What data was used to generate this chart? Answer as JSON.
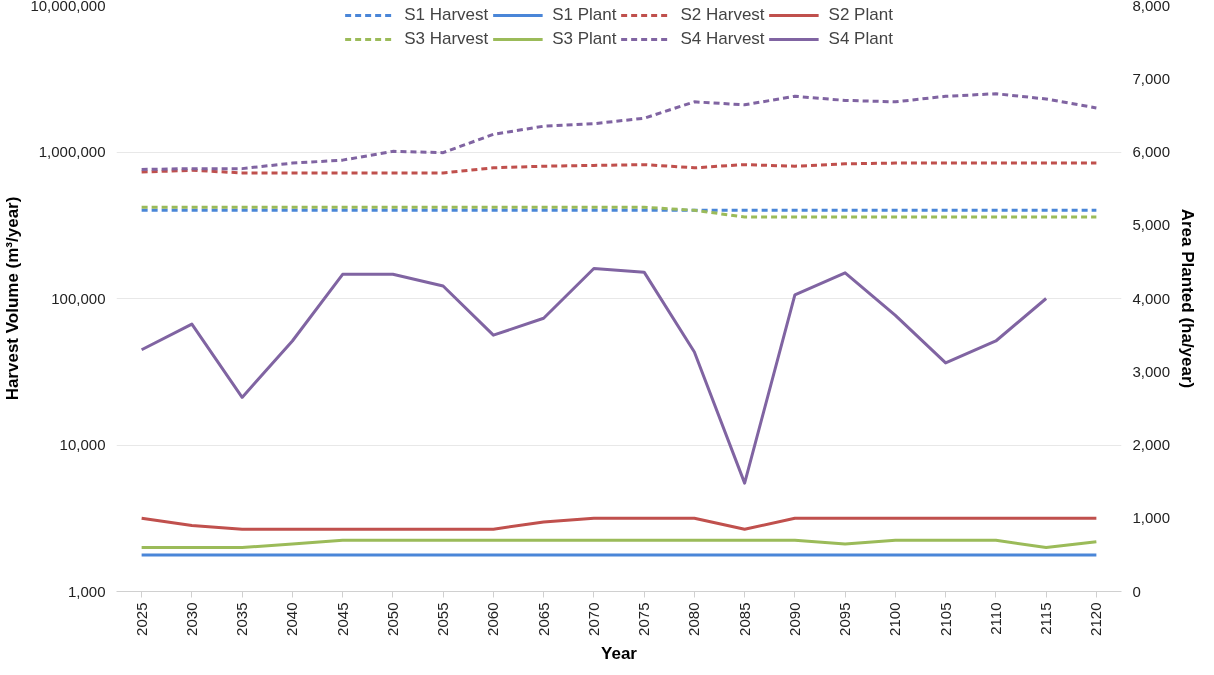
{
  "chart_data": {
    "type": "line",
    "xlabel": "Year",
    "ylabel": "Harvest Volume (m³/year)",
    "y2label": "Area Planted (ha/year)",
    "categories": [
      "2025",
      "2030",
      "2035",
      "2040",
      "2045",
      "2050",
      "2055",
      "2060",
      "2065",
      "2070",
      "2075",
      "2080",
      "2085",
      "2090",
      "2095",
      "2100",
      "2105",
      "2110",
      "2115",
      "2120"
    ],
    "log": "y",
    "grid": "y",
    "legend": "top",
    "marker": "none",
    "ylim": [
      1000,
      10000000
    ],
    "yticks": [
      {
        "value": 1000,
        "label": "1,000"
      },
      {
        "value": 10000,
        "label": "10,000"
      },
      {
        "value": 100000,
        "label": "100,000"
      },
      {
        "value": 1000000,
        "label": "1,000,000"
      },
      {
        "value": 10000000,
        "label": "10,000,000"
      }
    ],
    "y2lim": [
      0,
      8000
    ],
    "y2ticks": [
      0,
      {
        "value": 1000,
        "label": "1,000"
      },
      {
        "value": 2000,
        "label": "2,000"
      },
      {
        "value": 3000,
        "label": "3,000"
      },
      {
        "value": 4000,
        "label": "4,000"
      },
      {
        "value": 5000,
        "label": "5,000"
      },
      {
        "value": 6000,
        "label": "6,000"
      },
      {
        "value": 7000,
        "label": "7,000"
      },
      {
        "value": 8000,
        "label": "8,000"
      }
    ],
    "series": [
      {
        "name": "S1 Harvest",
        "color": "#4a86d8",
        "line_style": "dashed",
        "axis": "y",
        "values": [
          400000,
          400000,
          400000,
          400000,
          400000,
          400000,
          400000,
          400000,
          400000,
          400000,
          400000,
          400000,
          400000,
          400000,
          400000,
          400000,
          400000,
          400000,
          400000,
          400000
        ]
      },
      {
        "name": "S2 Harvest",
        "color": "#c0504d",
        "line_style": "dashed",
        "axis": "y",
        "values": [
          730000,
          750000,
          720000,
          720000,
          720000,
          720000,
          720000,
          780000,
          800000,
          810000,
          820000,
          780000,
          820000,
          800000,
          830000,
          840000,
          840000,
          840000,
          840000,
          840000
        ]
      },
      {
        "name": "S3 Harvest",
        "color": "#9bbb59",
        "line_style": "dashed",
        "axis": "y",
        "values": [
          420000,
          420000,
          420000,
          420000,
          420000,
          420000,
          420000,
          420000,
          420000,
          420000,
          420000,
          400000,
          360000,
          360000,
          360000,
          360000,
          360000,
          360000,
          360000,
          360000
        ]
      },
      {
        "name": "S4 Harvest",
        "color": "#8064a2",
        "line_style": "dashed",
        "axis": "y",
        "values": [
          760000,
          770000,
          770000,
          840000,
          880000,
          1010000,
          990000,
          1320000,
          1500000,
          1560000,
          1700000,
          2200000,
          2100000,
          2400000,
          2250000,
          2200000,
          2400000,
          2500000,
          2300000,
          2000000
        ]
      },
      {
        "name": "S1 Plant",
        "color": "#4a86d8",
        "line_style": "solid",
        "axis": "y2",
        "values": [
          500,
          500,
          500,
          500,
          500,
          500,
          500,
          500,
          500,
          500,
          500,
          500,
          500,
          500,
          500,
          500,
          500,
          500,
          500,
          500
        ]
      },
      {
        "name": "S2 Plant",
        "color": "#c0504d",
        "line_style": "solid",
        "axis": "y2",
        "values": [
          1000,
          900,
          850,
          850,
          850,
          850,
          850,
          850,
          950,
          1000,
          1000,
          1000,
          850,
          1000,
          1000,
          1000,
          1000,
          1000,
          1000,
          1000
        ]
      },
      {
        "name": "S3 Plant",
        "color": "#9bbb59",
        "line_style": "solid",
        "axis": "y2",
        "values": [
          600,
          600,
          600,
          650,
          700,
          700,
          700,
          700,
          700,
          700,
          700,
          700,
          700,
          700,
          650,
          700,
          700,
          700,
          600,
          680
        ]
      },
      {
        "name": "S4 Plant",
        "color": "#8064a2",
        "line_style": "solid",
        "axis": "y2",
        "values": [
          3300,
          3650,
          2650,
          3420,
          4330,
          4330,
          4170,
          3500,
          3730,
          4410,
          4360,
          3270,
          1480,
          4050,
          4350,
          3770,
          3120,
          3420,
          4000,
          null
        ]
      }
    ]
  }
}
